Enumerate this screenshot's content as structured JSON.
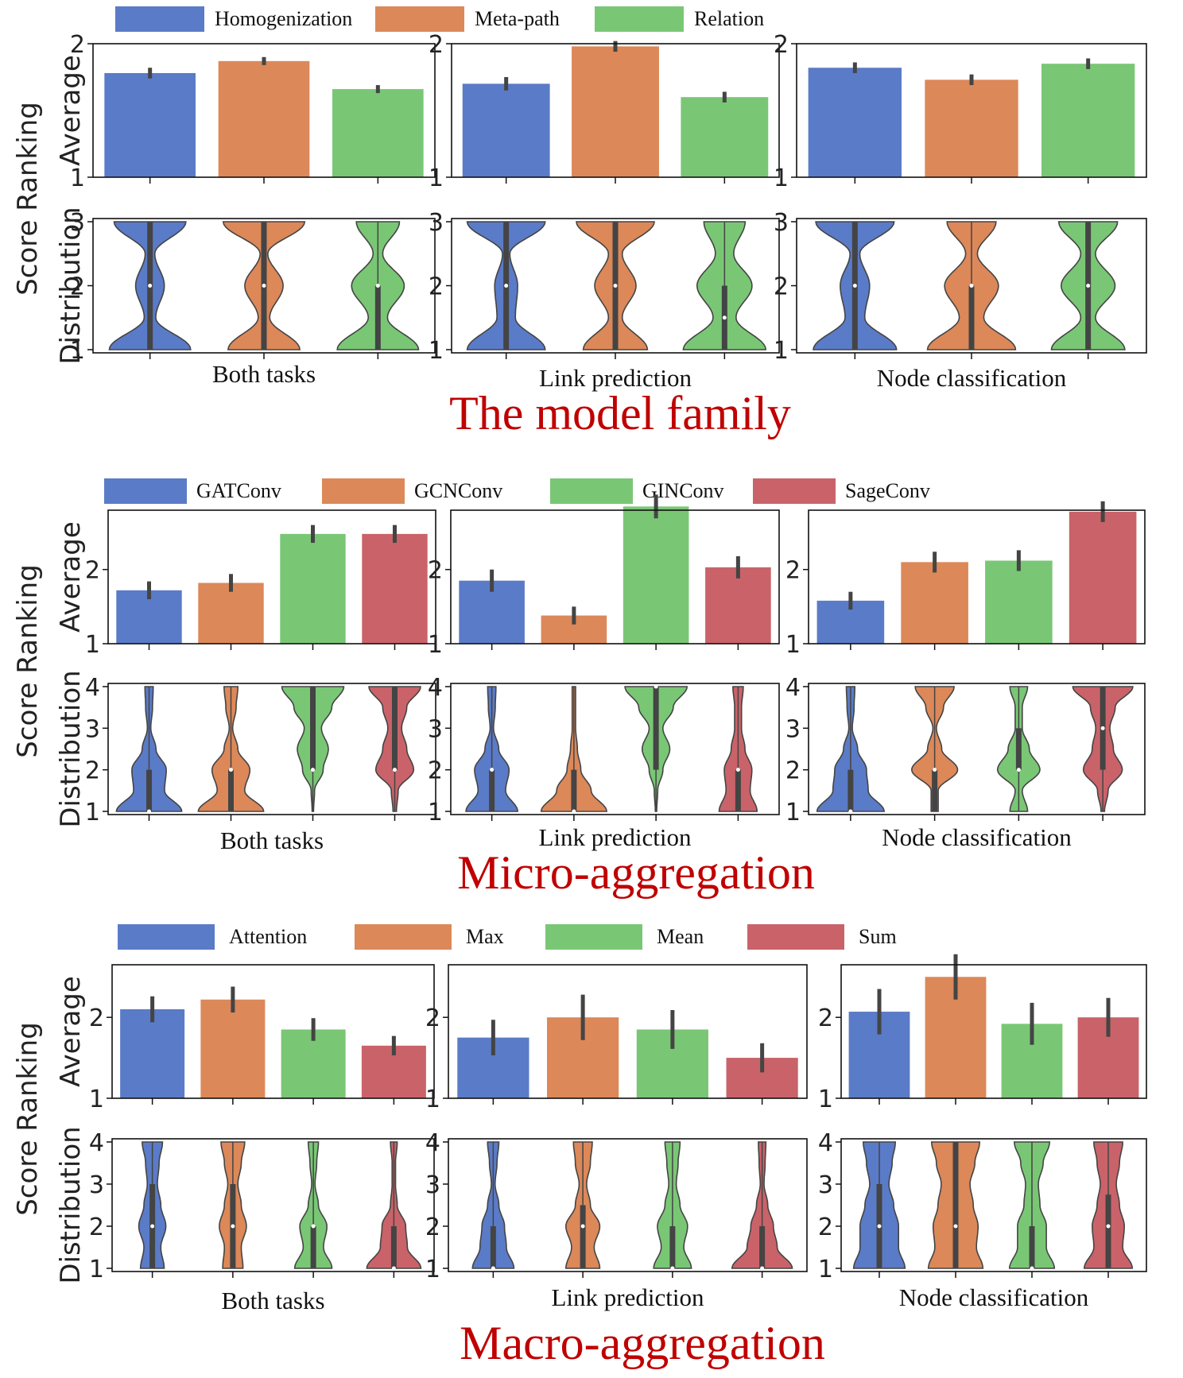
{
  "y_axis": {
    "label": "Score Ranking",
    "average_label": "Average",
    "distribution_label": "Distribution"
  },
  "colors": {
    "blue": "#5a7bc7",
    "orange": "#dc8859",
    "green": "#79c775",
    "red": "#c96369",
    "title": "#c00000",
    "errbar": "#444444",
    "violin_edge": "#444444"
  },
  "chart_data": [
    {
      "type": "bar+violin",
      "title": "The model family",
      "legend": [
        "Homogenization",
        "Meta-path",
        "Relation"
      ],
      "categories": [
        "Homogenization",
        "Meta-path",
        "Relation"
      ],
      "average_ylim": [
        1,
        2
      ],
      "average_yticks": [
        1,
        2
      ],
      "distribution_ylim": [
        1,
        3
      ],
      "distribution_yticks": [
        1,
        2,
        3
      ],
      "panels": [
        {
          "subtitle": "Both tasks",
          "values": [
            1.78,
            1.87,
            1.66
          ],
          "errors": [
            0.04,
            0.03,
            0.03
          ],
          "violins": [
            {
              "dens": {
                "1": 0.85,
                "1.5": 0.12,
                "2": 0.3,
                "2.5": 0.1,
                "3": 0.75
              },
              "median": 2,
              "q": [
                1,
                3
              ]
            },
            {
              "dens": {
                "1": 0.75,
                "1.5": 0.12,
                "2": 0.4,
                "2.5": 0.08,
                "3": 0.85
              },
              "median": 2,
              "q": [
                1,
                3
              ]
            },
            {
              "dens": {
                "1": 0.85,
                "1.5": 0.2,
                "2": 0.55,
                "2.5": 0.1,
                "3": 0.45
              },
              "median": 2,
              "q": [
                1,
                2
              ]
            }
          ]
        },
        {
          "subtitle": "Link prediction",
          "values": [
            1.7,
            1.98,
            1.6
          ],
          "errors": [
            0.05,
            0.04,
            0.04
          ],
          "violins": [
            {
              "dens": {
                "1": 0.85,
                "1.5": 0.2,
                "2": 0.25,
                "2.5": 0.08,
                "3": 0.85
              },
              "median": 2,
              "q": [
                1,
                3
              ]
            },
            {
              "dens": {
                "1": 0.7,
                "1.5": 0.15,
                "2": 0.45,
                "2.5": 0.15,
                "3": 0.85
              },
              "median": 2,
              "q": [
                1,
                3
              ]
            },
            {
              "dens": {
                "1": 0.9,
                "1.5": 0.25,
                "2": 0.6,
                "2.5": 0.2,
                "3": 0.45
              },
              "median": 1.5,
              "q": [
                1,
                2
              ]
            }
          ]
        },
        {
          "subtitle": "Node classification",
          "values": [
            1.82,
            1.73,
            1.85
          ],
          "errors": [
            0.04,
            0.04,
            0.04
          ],
          "violins": [
            {
              "dens": {
                "1": 0.85,
                "1.5": 0.2,
                "2": 0.3,
                "2.5": 0.1,
                "3": 0.8
              },
              "median": 2,
              "q": [
                1,
                3
              ]
            },
            {
              "dens": {
                "1": 0.9,
                "1.5": 0.25,
                "2": 0.55,
                "2.5": 0.12,
                "3": 0.5
              },
              "median": 2,
              "q": [
                1,
                2
              ]
            },
            {
              "dens": {
                "1": 0.75,
                "1.5": 0.15,
                "2": 0.55,
                "2.5": 0.15,
                "3": 0.6
              },
              "median": 2,
              "q": [
                1,
                3
              ]
            }
          ]
        }
      ]
    },
    {
      "type": "bar+violin",
      "title": "Micro-aggregation",
      "legend": [
        "GATConv",
        "GCNConv",
        "GINConv",
        "SageConv"
      ],
      "categories": [
        "GATConv",
        "GCNConv",
        "GINConv",
        "SageConv"
      ],
      "average_ylim": [
        1,
        2.8
      ],
      "average_yticks": [
        1,
        2
      ],
      "distribution_ylim": [
        1,
        4
      ],
      "distribution_yticks": [
        1,
        2,
        3,
        4
      ],
      "panels": [
        {
          "subtitle": "Both tasks",
          "values": [
            1.72,
            1.82,
            2.48,
            2.48
          ],
          "errors": [
            0.12,
            0.12,
            0.12,
            0.12
          ],
          "violins": [
            {
              "dens": {
                "1": 0.95,
                "1.5": 0.45,
                "2": 0.5,
                "2.5": 0.2,
                "3": 0.05,
                "3.5": 0.1,
                "4": 0.12
              },
              "median": 1,
              "q": [
                1,
                2
              ]
            },
            {
              "dens": {
                "1": 0.95,
                "1.5": 0.4,
                "2": 0.55,
                "2.5": 0.2,
                "3": 0.05,
                "3.5": 0.15,
                "4": 0.2
              },
              "median": 2,
              "q": [
                1,
                2
              ]
            },
            {
              "dens": {
                "1": 0.02,
                "1.5": 0.05,
                "2": 0.3,
                "2.5": 0.45,
                "3": 0.25,
                "3.5": 0.55,
                "4": 0.9
              },
              "median": 2,
              "q": [
                2,
                4
              ]
            },
            {
              "dens": {
                "1": 0.05,
                "1.5": 0.1,
                "2": 0.55,
                "2.5": 0.35,
                "3": 0.2,
                "3.5": 0.35,
                "4": 0.75
              },
              "median": 2,
              "q": [
                2,
                4
              ]
            }
          ]
        },
        {
          "subtitle": "Link prediction",
          "values": [
            1.85,
            1.38,
            2.85,
            2.03
          ],
          "errors": [
            0.15,
            0.12,
            0.16,
            0.15
          ],
          "violins": [
            {
              "dens": {
                "1": 0.75,
                "1.5": 0.4,
                "2": 0.5,
                "2.5": 0.2,
                "3": 0.05,
                "3.5": 0.1,
                "4": 0.12
              },
              "median": 2,
              "q": [
                1,
                2
              ]
            },
            {
              "dens": {
                "1": 0.95,
                "1.5": 0.5,
                "2": 0.2,
                "2.5": 0.1,
                "3": 0.05,
                "3.5": 0.05,
                "4": 0.05
              },
              "median": 1,
              "q": [
                1,
                2
              ]
            },
            {
              "dens": {
                "1": 0.02,
                "1.5": 0.05,
                "2": 0.2,
                "2.5": 0.4,
                "3": 0.2,
                "3.5": 0.5,
                "4": 0.9
              },
              "median": 4,
              "q": [
                2,
                4
              ]
            },
            {
              "dens": {
                "1": 0.55,
                "1.5": 0.35,
                "2": 0.4,
                "2.5": 0.2,
                "3": 0.1,
                "3.5": 0.1,
                "4": 0.15
              },
              "median": 2,
              "q": [
                1,
                2
              ]
            }
          ]
        },
        {
          "subtitle": "Node classification",
          "values": [
            1.58,
            2.1,
            2.12,
            2.78
          ],
          "errors": [
            0.12,
            0.14,
            0.14,
            0.14
          ],
          "violins": [
            {
              "dens": {
                "1": 0.95,
                "1.5": 0.5,
                "2": 0.45,
                "2.5": 0.2,
                "3": 0.05,
                "3.5": 0.1,
                "4": 0.12
              },
              "median": 1,
              "q": [
                1,
                2
              ]
            },
            {
              "dens": {
                "1": 0.1,
                "1.5": 0.1,
                "2": 0.65,
                "2.5": 0.2,
                "3": 0.05,
                "3.5": 0.25,
                "4": 0.55
              },
              "median": 2,
              "q": [
                1,
                2
              ]
            },
            {
              "dens": {
                "1": 0.25,
                "1.5": 0.1,
                "2": 0.6,
                "2.5": 0.3,
                "3": 0.1,
                "3.5": 0.1,
                "4": 0.25
              },
              "median": 2,
              "q": [
                2,
                3
              ]
            },
            {
              "dens": {
                "1": 0.05,
                "1.5": 0.15,
                "2": 0.55,
                "2.5": 0.3,
                "3": 0.2,
                "3.5": 0.35,
                "4": 0.85
              },
              "median": 3,
              "q": [
                2,
                4
              ]
            }
          ]
        }
      ]
    },
    {
      "type": "bar+violin",
      "title": "Macro-aggregation",
      "legend": [
        "Attention",
        "Max",
        "Mean",
        "Sum"
      ],
      "categories": [
        "Attention",
        "Max",
        "Mean",
        "Sum"
      ],
      "average_ylim": [
        1,
        2.65
      ],
      "average_yticks": [
        1,
        2
      ],
      "distribution_ylim": [
        1,
        4
      ],
      "distribution_yticks": [
        1,
        2,
        3,
        4
      ],
      "panels": [
        {
          "subtitle": "Both tasks",
          "values": [
            2.1,
            2.22,
            1.85,
            1.65
          ],
          "errors": [
            0.16,
            0.16,
            0.14,
            0.12
          ],
          "violins": [
            {
              "dens": {
                "1": 0.35,
                "1.5": 0.25,
                "2": 0.4,
                "2.5": 0.25,
                "3": 0.15,
                "3.5": 0.2,
                "4": 0.3
              },
              "median": 2,
              "q": [
                1,
                3
              ]
            },
            {
              "dens": {
                "1": 0.3,
                "1.5": 0.25,
                "2": 0.4,
                "2.5": 0.25,
                "3": 0.15,
                "3.5": 0.25,
                "4": 0.35
              },
              "median": 2,
              "q": [
                1,
                3
              ]
            },
            {
              "dens": {
                "1": 0.55,
                "1.5": 0.3,
                "2": 0.4,
                "2.5": 0.15,
                "3": 0.05,
                "3.5": 0.1,
                "4": 0.15
              },
              "median": 2,
              "q": [
                1,
                2
              ]
            },
            {
              "dens": {
                "1": 0.8,
                "1.5": 0.4,
                "2": 0.35,
                "2.5": 0.1,
                "3": 0.05,
                "3.5": 0.05,
                "4": 0.1
              },
              "median": 1,
              "q": [
                1,
                2
              ]
            }
          ]
        },
        {
          "subtitle": "Link prediction",
          "values": [
            1.75,
            2.0,
            1.85,
            1.5
          ],
          "errors": [
            0.22,
            0.28,
            0.24,
            0.18
          ],
          "violins": [
            {
              "dens": {
                "1": 0.55,
                "1.5": 0.35,
                "2": 0.3,
                "2.5": 0.15,
                "3": 0.05,
                "3.5": 0.1,
                "4": 0.15
              },
              "median": 1,
              "q": [
                1,
                2
              ]
            },
            {
              "dens": {
                "1": 0.45,
                "1.5": 0.3,
                "2": 0.45,
                "2.5": 0.2,
                "3": 0.1,
                "3.5": 0.2,
                "4": 0.25
              },
              "median": 2,
              "q": [
                1,
                2.5
              ]
            },
            {
              "dens": {
                "1": 0.5,
                "1.5": 0.3,
                "2": 0.4,
                "2.5": 0.2,
                "3": 0.1,
                "3.5": 0.15,
                "4": 0.2
              },
              "median": 1,
              "q": [
                1,
                2
              ]
            },
            {
              "dens": {
                "1": 0.8,
                "1.5": 0.4,
                "2": 0.3,
                "2.5": 0.15,
                "3": 0.05,
                "3.5": 0.08,
                "4": 0.1
              },
              "median": 1,
              "q": [
                1,
                2
              ]
            }
          ]
        },
        {
          "subtitle": "Node classification",
          "values": [
            2.07,
            2.5,
            1.92,
            2.0
          ],
          "errors": [
            0.28,
            0.28,
            0.26,
            0.24
          ],
          "violins": [
            {
              "dens": {
                "1": 0.8,
                "1.5": 0.6,
                "2": 0.6,
                "2.5": 0.45,
                "3": 0.3,
                "3.5": 0.4,
                "4": 0.5
              },
              "median": 2,
              "q": [
                1,
                3
              ]
            },
            {
              "dens": {
                "1": 0.85,
                "1.5": 0.65,
                "2": 0.7,
                "2.5": 0.55,
                "3": 0.45,
                "3.5": 0.6,
                "4": 0.75
              },
              "median": 2,
              "q": [
                1,
                4
              ]
            },
            {
              "dens": {
                "1": 0.7,
                "1.5": 0.45,
                "2": 0.45,
                "2.5": 0.25,
                "3": 0.2,
                "3.5": 0.35,
                "4": 0.55
              },
              "median": 1,
              "q": [
                1,
                2
              ]
            },
            {
              "dens": {
                "1": 0.75,
                "1.5": 0.45,
                "2": 0.5,
                "2.5": 0.35,
                "3": 0.25,
                "3.5": 0.35,
                "4": 0.45
              },
              "median": 2,
              "q": [
                1,
                2.75
              ]
            }
          ]
        }
      ]
    }
  ]
}
